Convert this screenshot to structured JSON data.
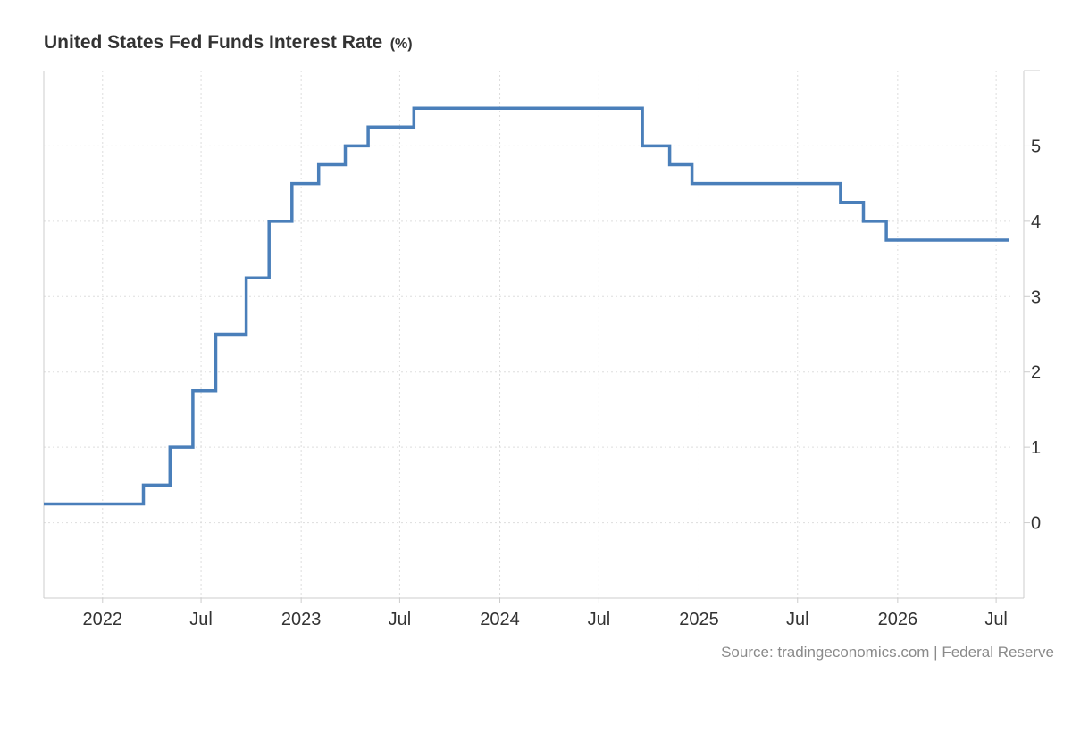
{
  "title": "United States Fed Funds Interest Rate",
  "unit": "(%)",
  "source": "Source: tradingeconomics.com | Federal Reserve",
  "colors": {
    "line": "#4a7fba",
    "grid": "#dddddd",
    "axis": "#cccccc",
    "tick_text": "#333333",
    "source_text": "#8a8a8a"
  },
  "chart_data": {
    "type": "line",
    "step": true,
    "xlim": [
      "2021-09-15",
      "2026-08-01"
    ],
    "ylim": [
      -1,
      6
    ],
    "y_ticks": [
      0,
      1,
      2,
      3,
      4,
      5
    ],
    "y_axis_position": "right",
    "grid": true,
    "x_ticks": [
      {
        "label": "2022",
        "date": "2022-01-01"
      },
      {
        "label": "Jul",
        "date": "2022-07-01"
      },
      {
        "label": "2023",
        "date": "2023-01-01"
      },
      {
        "label": "Jul",
        "date": "2023-07-01"
      },
      {
        "label": "2024",
        "date": "2024-01-01"
      },
      {
        "label": "Jul",
        "date": "2024-07-01"
      },
      {
        "label": "2025",
        "date": "2025-01-01"
      },
      {
        "label": "Jul",
        "date": "2025-07-01"
      },
      {
        "label": "2026",
        "date": "2026-01-01"
      },
      {
        "label": "Jul",
        "date": "2026-07-01"
      }
    ],
    "series": [
      {
        "points": [
          {
            "date": "2021-09-15",
            "value": 0.25
          },
          {
            "date": "2022-03-17",
            "value": 0.5
          },
          {
            "date": "2022-05-05",
            "value": 1.0
          },
          {
            "date": "2022-06-16",
            "value": 1.75
          },
          {
            "date": "2022-07-28",
            "value": 2.5
          },
          {
            "date": "2022-09-22",
            "value": 3.25
          },
          {
            "date": "2022-11-03",
            "value": 4.0
          },
          {
            "date": "2022-12-15",
            "value": 4.5
          },
          {
            "date": "2023-02-02",
            "value": 4.75
          },
          {
            "date": "2023-03-23",
            "value": 5.0
          },
          {
            "date": "2023-05-04",
            "value": 5.25
          },
          {
            "date": "2023-07-27",
            "value": 5.5
          },
          {
            "date": "2024-09-19",
            "value": 5.0
          },
          {
            "date": "2024-11-08",
            "value": 4.75
          },
          {
            "date": "2024-12-19",
            "value": 4.5
          },
          {
            "date": "2025-09-18",
            "value": 4.25
          },
          {
            "date": "2025-10-30",
            "value": 4.0
          },
          {
            "date": "2025-12-11",
            "value": 3.75
          },
          {
            "date": "2026-07-25",
            "value": 3.75
          }
        ]
      }
    ]
  }
}
